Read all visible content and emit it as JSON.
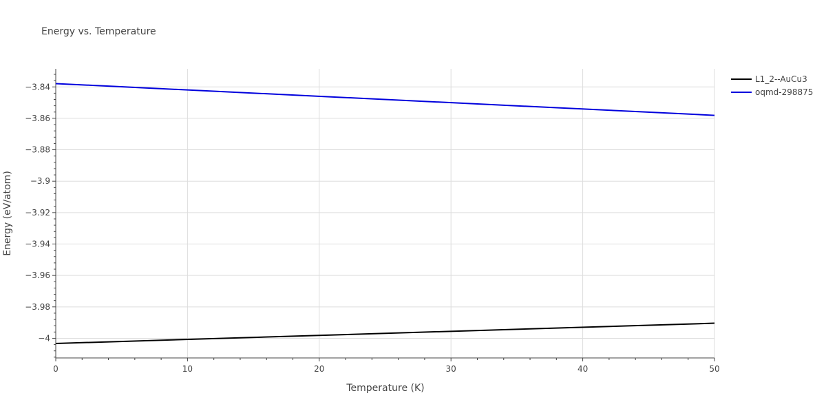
{
  "chart_data": {
    "type": "line",
    "title": "Energy vs. Temperature",
    "xlabel": "Temperature (K)",
    "ylabel": "Energy (eV/atom)",
    "xlim": [
      0,
      50
    ],
    "ylim": [
      -4.0125,
      -3.8285
    ],
    "x_ticks": [
      0,
      10,
      20,
      30,
      40,
      50
    ],
    "x_tick_labels": [
      "0",
      "10",
      "20",
      "30",
      "40",
      "50"
    ],
    "y_ticks": [
      -3.84,
      -3.86,
      -3.88,
      -3.9,
      -3.92,
      -3.94,
      -3.96,
      -3.98,
      -4.0
    ],
    "y_tick_labels": [
      "−3.84",
      "−3.86",
      "−3.88",
      "−3.9",
      "−3.92",
      "−3.94",
      "−3.96",
      "−3.98",
      "−4"
    ],
    "grid": true,
    "legend_position": "top-right",
    "series": [
      {
        "name": "L1_2--AuCu3",
        "color": "#000000",
        "x": [
          0,
          50
        ],
        "y": [
          -4.0033,
          -3.9904
        ]
      },
      {
        "name": "oqmd-298875",
        "color": "#0000dd",
        "x": [
          0,
          50
        ],
        "y": [
          -3.8379,
          -3.8581
        ]
      }
    ]
  }
}
